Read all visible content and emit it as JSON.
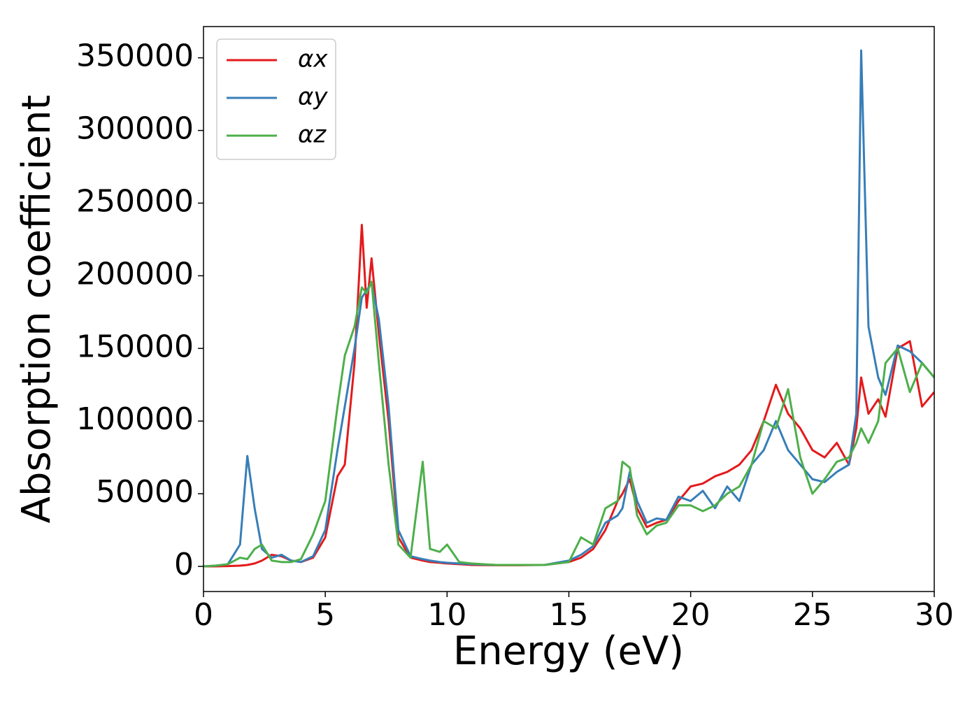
{
  "chart_data": {
    "type": "line",
    "xlabel": "Energy (eV)",
    "ylabel": "Absorption coefficient",
    "x": [
      0,
      0.5,
      1,
      1.5,
      1.8,
      2.1,
      2.4,
      2.8,
      3.2,
      3.6,
      4,
      4.5,
      5,
      5.5,
      5.8,
      6.2,
      6.5,
      6.7,
      6.9,
      7.2,
      7.6,
      8,
      8.5,
      9,
      9.3,
      9.7,
      10,
      10.5,
      11,
      12,
      13,
      14,
      15,
      15.5,
      16,
      16.5,
      17,
      17.2,
      17.5,
      17.8,
      18.2,
      18.6,
      19,
      19.5,
      20,
      20.5,
      21,
      21.5,
      22,
      22.5,
      23,
      23.5,
      24,
      24.5,
      25,
      25.5,
      26,
      26.5,
      26.8,
      27,
      27.3,
      27.7,
      28,
      28.5,
      29,
      29.5,
      30
    ],
    "series": [
      {
        "name": "αx",
        "color": "#e41a1c",
        "values": [
          0,
          0,
          200,
          500,
          1000,
          2000,
          4000,
          8000,
          7000,
          4000,
          3000,
          6000,
          20000,
          62000,
          70000,
          140000,
          235000,
          178000,
          212000,
          160000,
          100000,
          20000,
          6000,
          4000,
          3000,
          2500,
          2000,
          1500,
          1000,
          800,
          800,
          1000,
          3000,
          6000,
          12000,
          25000,
          45000,
          50000,
          60000,
          40000,
          27000,
          30000,
          32000,
          45000,
          55000,
          57000,
          62000,
          65000,
          70000,
          80000,
          100000,
          125000,
          105000,
          95000,
          80000,
          75000,
          85000,
          70000,
          95000,
          130000,
          105000,
          115000,
          103000,
          150000,
          155000,
          110000,
          120000
        ]
      },
      {
        "name": "αy",
        "color": "#377eb8",
        "values": [
          0,
          500,
          1500,
          15000,
          76000,
          40000,
          12000,
          6000,
          8000,
          4000,
          3000,
          7000,
          25000,
          80000,
          110000,
          150000,
          185000,
          190000,
          195000,
          170000,
          110000,
          25000,
          7000,
          5000,
          4000,
          3000,
          2500,
          2000,
          1500,
          1000,
          1000,
          1000,
          4000,
          8000,
          14000,
          30000,
          35000,
          40000,
          65000,
          45000,
          30000,
          33000,
          32000,
          48000,
          45000,
          52000,
          40000,
          55000,
          45000,
          70000,
          80000,
          100000,
          80000,
          70000,
          60000,
          58000,
          65000,
          70000,
          105000,
          355000,
          165000,
          130000,
          118000,
          152000,
          148000,
          140000,
          130000
        ]
      },
      {
        "name": "αz",
        "color": "#4daf4a",
        "values": [
          0,
          500,
          1500,
          6000,
          5000,
          12000,
          15000,
          4000,
          3000,
          3000,
          5000,
          22000,
          45000,
          110000,
          145000,
          165000,
          192000,
          188000,
          196000,
          140000,
          70000,
          15000,
          6000,
          72000,
          12000,
          10000,
          15000,
          3000,
          2000,
          1000,
          1000,
          1000,
          3000,
          20000,
          15000,
          40000,
          45000,
          72000,
          68000,
          35000,
          22000,
          28000,
          30000,
          42000,
          42000,
          38000,
          42000,
          50000,
          55000,
          70000,
          100000,
          95000,
          122000,
          75000,
          50000,
          60000,
          72000,
          75000,
          85000,
          95000,
          85000,
          100000,
          140000,
          150000,
          120000,
          140000,
          130000
        ]
      }
    ],
    "xlim": [
      0,
      30
    ],
    "xticks": [
      0,
      5,
      10,
      15,
      20,
      25,
      30
    ],
    "ylim": [
      -17300,
      371500
    ],
    "yticks": [
      0,
      50000,
      100000,
      150000,
      200000,
      250000,
      300000,
      350000
    ],
    "legend": "upper left",
    "grid": false
  }
}
